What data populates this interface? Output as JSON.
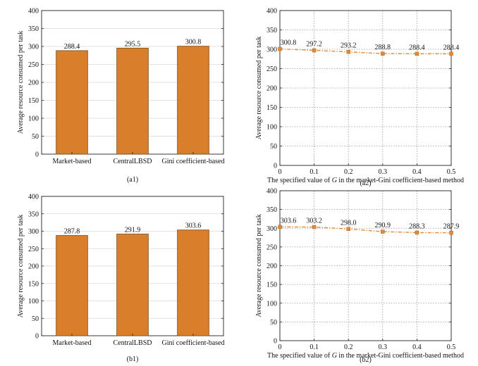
{
  "colors": {
    "bar": "#d97f2c",
    "bar_stroke": "#7a4a1c",
    "line": "#e08a3a",
    "grid": "#999999"
  },
  "chart_data": [
    {
      "id": "a1",
      "type": "bar",
      "caption": "(a1)",
      "categories": [
        "Market-based",
        "CentralLBSD",
        "Gini coefficient-based"
      ],
      "values": [
        288.4,
        295.5,
        300.8
      ],
      "value_labels": [
        "288.4",
        "295.5",
        "300.8"
      ],
      "ylabel": "Average resource consumed per task",
      "ylim": [
        0,
        400
      ],
      "yticks": [
        0,
        50,
        100,
        150,
        200,
        250,
        300,
        350,
        400
      ],
      "ytick_labels": [
        "0",
        "50",
        "100",
        "150",
        "200",
        "250",
        "300",
        "350",
        "400"
      ],
      "grid": "horizontal"
    },
    {
      "id": "a2",
      "type": "line",
      "caption": "(a2)",
      "x": [
        0,
        0.1,
        0.2,
        0.3,
        0.4,
        0.5
      ],
      "values": [
        300.8,
        297.2,
        293.2,
        288.8,
        288.4,
        288.4
      ],
      "value_labels": [
        "300.8",
        "297.2",
        "293.2",
        "288.8",
        "288.4",
        "288.4"
      ],
      "xlabel_before": "The specified value of ",
      "xlabel_var": "G",
      "xlabel_after": " in the market-Gini coefficient-based method",
      "ylabel": "Average resource consumed per task",
      "xlim": [
        0,
        0.5
      ],
      "xticks": [
        "0",
        "0.1",
        "0.2",
        "0.3",
        "0.4",
        "0.5"
      ],
      "ylim": [
        0,
        400
      ],
      "yticks": [
        0,
        50,
        100,
        150,
        200,
        250,
        300,
        350,
        400
      ],
      "ytick_labels": [
        "0",
        "50",
        "100",
        "150",
        "200",
        "250",
        "300",
        "350",
        "400"
      ],
      "grid": "both-dotted"
    },
    {
      "id": "b1",
      "type": "bar",
      "caption": "(b1)",
      "categories": [
        "Market-based",
        "CentralLBSD",
        "Gini coefficient-based"
      ],
      "values": [
        287.8,
        291.9,
        303.6
      ],
      "value_labels": [
        "287.8",
        "291.9",
        "303.6"
      ],
      "ylabel": "Average resource consumed per task",
      "ylim": [
        0,
        400
      ],
      "yticks": [
        0,
        50,
        100,
        150,
        200,
        250,
        300,
        350,
        400
      ],
      "ytick_labels": [
        "0",
        "50",
        "100",
        "150",
        "200",
        "250",
        "300",
        "350",
        "400"
      ],
      "grid": "horizontal"
    },
    {
      "id": "b2",
      "type": "line",
      "caption": "(b2)",
      "x": [
        0,
        0.1,
        0.2,
        0.3,
        0.4,
        0.5
      ],
      "values": [
        303.6,
        303.2,
        298.0,
        290.9,
        288.3,
        287.9
      ],
      "value_labels": [
        "303.6",
        "303.2",
        "298.0",
        "290.9",
        "288.3",
        "287.9"
      ],
      "xlabel_before": "The specified value of ",
      "xlabel_var": "G",
      "xlabel_after": " in the market-Gini coefficient-based method",
      "ylabel": "Average resource consumed per task",
      "xlim": [
        0,
        0.5
      ],
      "xticks": [
        "0",
        "0.1",
        "0.2",
        "0.3",
        "0.4",
        "0.5"
      ],
      "ylim": [
        0,
        400
      ],
      "yticks": [
        0,
        50,
        100,
        150,
        200,
        250,
        300,
        350,
        400
      ],
      "ytick_labels": [
        "0",
        "50",
        "100",
        "150",
        "200",
        "250",
        "300",
        "350",
        "400"
      ],
      "grid": "both-dotted"
    }
  ]
}
